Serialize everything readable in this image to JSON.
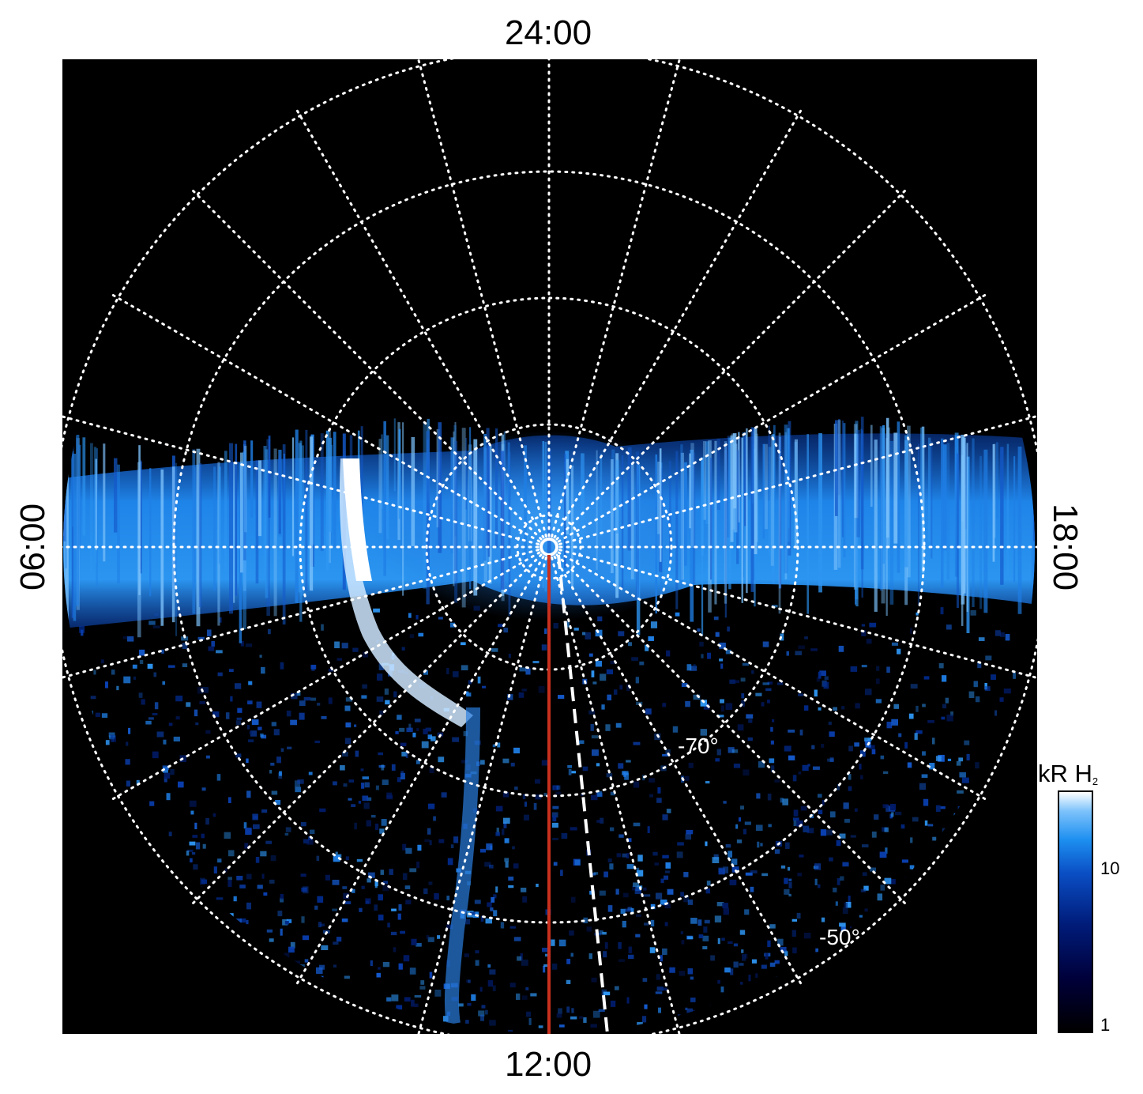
{
  "figure": {
    "local_time_labels": {
      "top": "24:00",
      "bottom": "12:00",
      "left": "06:00",
      "right": "18:00"
    },
    "latitude_labels": [
      "-70°",
      "-50°"
    ],
    "colorbar": {
      "title_main": "kR H",
      "title_subscript": "2",
      "ticks": [
        "10",
        "1"
      ],
      "colors": [
        "#000000",
        "#00003a",
        "#001c7a",
        "#0a4ec4",
        "#1d8ff0",
        "#7cc2fb",
        "#ffffff"
      ],
      "scale": "log"
    },
    "grid_style": "dotted white",
    "meridian_line_color": "#c8301e",
    "dashed_line_color": "#ffffff",
    "background_color": "#000000"
  }
}
